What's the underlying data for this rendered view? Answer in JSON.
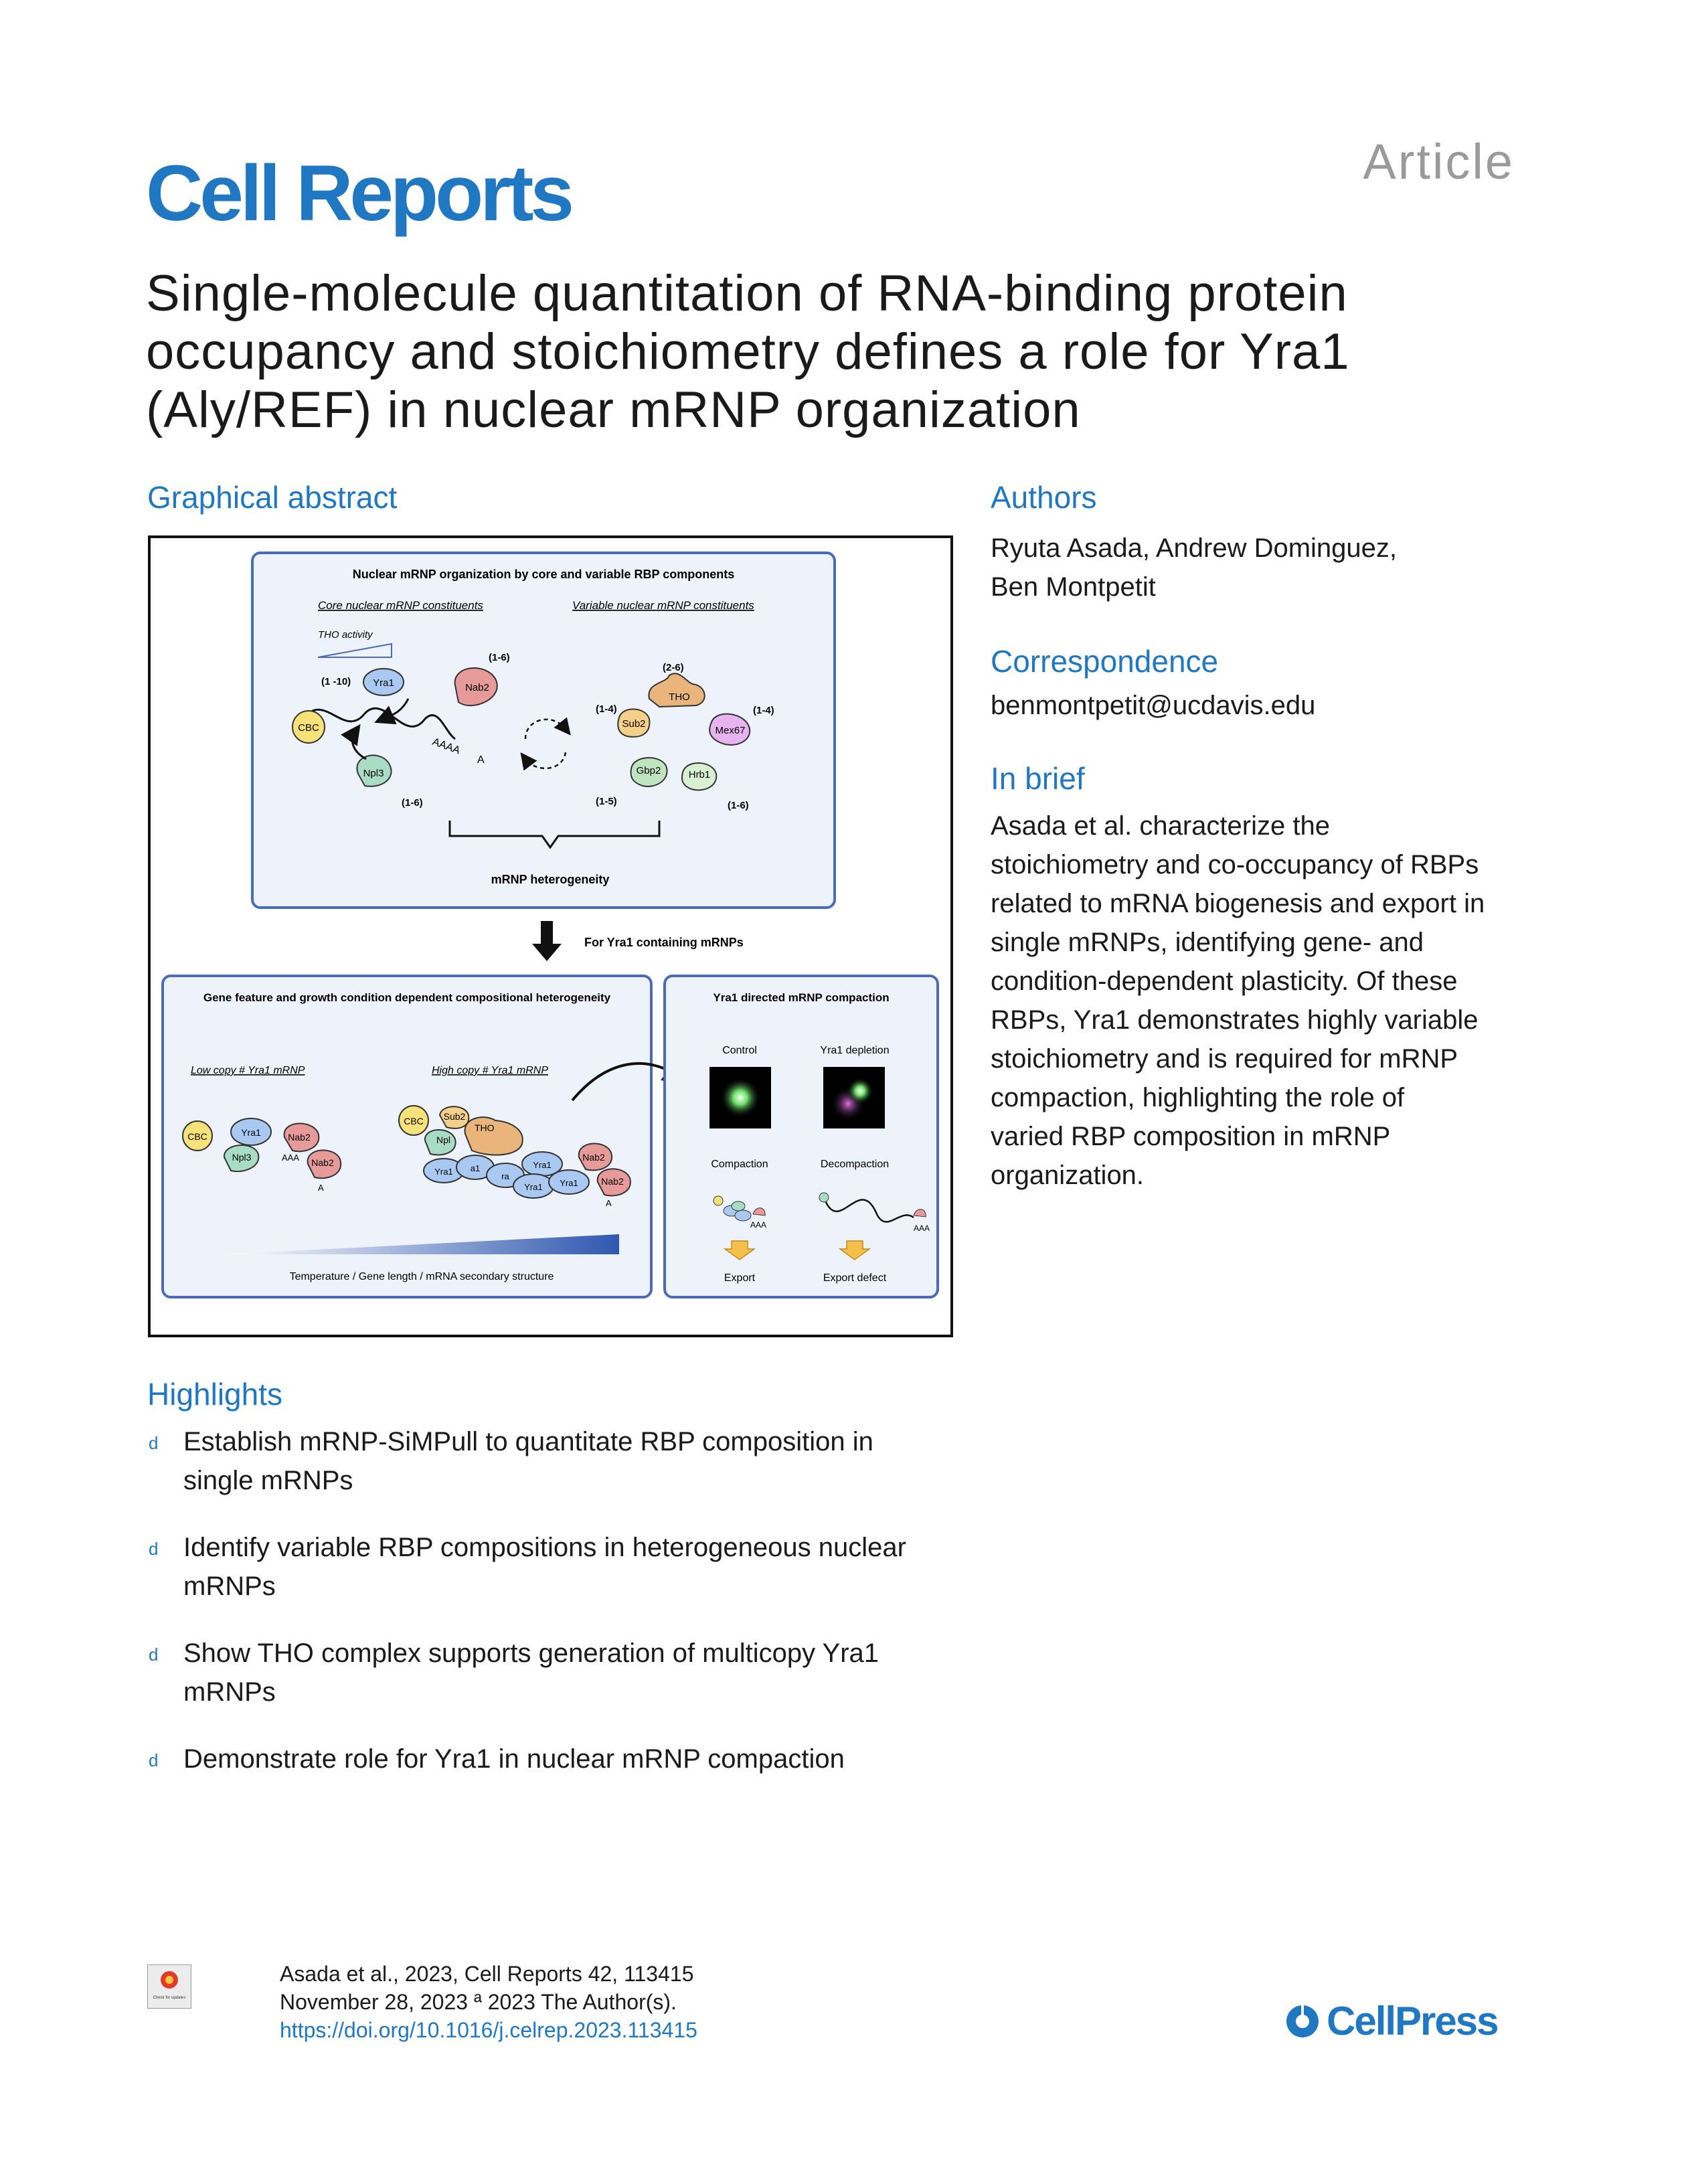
{
  "header": {
    "journal": "Cell Reports",
    "article_type": "Article"
  },
  "title_lines": [
    "Single-molecule quantitation of RNA-binding protein",
    "occupancy and stoichiometry defines a role for Yra1",
    "(Aly/REF) in nuclear mRNP organization"
  ],
  "graphical_abstract": {
    "heading": "Graphical abstract",
    "top_panel": {
      "title": "Nuclear mRNP organization by core and variable RBP components",
      "core_label": "Core nuclear mRNP constituents",
      "variable_label": "Variable nuclear mRNP constituents",
      "tho_activity": "THO activity",
      "proteins": {
        "yra1": "Yra1",
        "yra1_range": "(1 -10)",
        "nab2": "Nab2",
        "nab2_range": "(1-6)",
        "cbc": "CBC",
        "npl3": "Npl3",
        "npl3_range": "(1-6)",
        "tho": "THO",
        "tho_range": "(2-6)",
        "sub2": "Sub2",
        "sub2_range": "(1-4)",
        "mex67": "Mex67",
        "mex67_range": "(1-4)",
        "gbp2": "Gbp2",
        "gbp2_range": "(1-5)",
        "hrb1": "Hrb1",
        "hrb1_range": "(1-6)",
        "polya": "AAAA",
        "polya_tail": "A"
      },
      "heterogeneity": "mRNP heterogeneity"
    },
    "arrow_label": "For Yra1 containing mRNPs",
    "left_panel": {
      "title": "Gene feature and growth condition dependent compositional heterogeneity",
      "low_copy": "Low copy # Yra1 mRNP",
      "high_copy": "High copy # Yra1 mRNP",
      "gradient_label": "Temperature / Gene length / mRNA secondary structure",
      "labels": {
        "cbc": "CBC",
        "yra1": "Yra1",
        "npl3": "Npl3",
        "npl_trunc": "Npl",
        "nab2": "Nab2",
        "sub2": "Sub2",
        "tho": "THO",
        "ya1": "a1",
        "ra": "ra",
        "aaa": "AAA",
        "a": "A"
      }
    },
    "right_panel": {
      "title": "Yra1 directed mRNP compaction",
      "control": "Control",
      "depletion": "Yra1 depletion",
      "compaction": "Compaction",
      "decompaction": "Decompaction",
      "export": "Export",
      "export_defect": "Export defect",
      "aaa": "AAA"
    }
  },
  "authors": {
    "heading": "Authors",
    "lines": [
      "Ryuta Asada, Andrew Dominguez,",
      "Ben Montpetit"
    ]
  },
  "correspondence": {
    "heading": "Correspondence",
    "email": "benmontpetit@ucdavis.edu"
  },
  "in_brief": {
    "heading": "In brief",
    "lines": [
      "Asada et al. characterize the",
      "stoichiometry and co-occupancy of RBPs",
      "related to mRNA biogenesis and export in",
      "single mRNPs, identifying gene- and",
      "condition-dependent plasticity. Of these",
      "RBPs, Yra1 demonstrates highly variable",
      "stoichiometry and is required for mRNP",
      "compaction, highlighting the role of",
      "varied RBP composition in mRNP",
      "organization."
    ]
  },
  "highlights": {
    "heading": "Highlights",
    "bullet": "d",
    "items": [
      [
        "Establish mRNP-SiMPull to quantitate RBP composition in",
        "single mRNPs"
      ],
      [
        "Identify variable RBP compositions in heterogeneous nuclear",
        "mRNPs"
      ],
      [
        "Show THO complex supports generation of multicopy Yra1",
        "mRNPs"
      ],
      [
        "Demonstrate role for Yra1 in nuclear mRNP compaction"
      ]
    ]
  },
  "citation": {
    "line1": "Asada et al., 2023, Cell Reports 42, 113415",
    "line2": "November 28, 2023 ª 2023 The Author(s).",
    "doi": "https://doi.org/10.1016/j.celrep.2023.113415",
    "check_label": "Check for updates"
  },
  "publisher": "CellPress",
  "colors": {
    "brand_blue": "#1f78c1",
    "grey": "#9a9a9a",
    "panel_fill": "#eef2fb",
    "panel_border": "#4a6bb8"
  }
}
